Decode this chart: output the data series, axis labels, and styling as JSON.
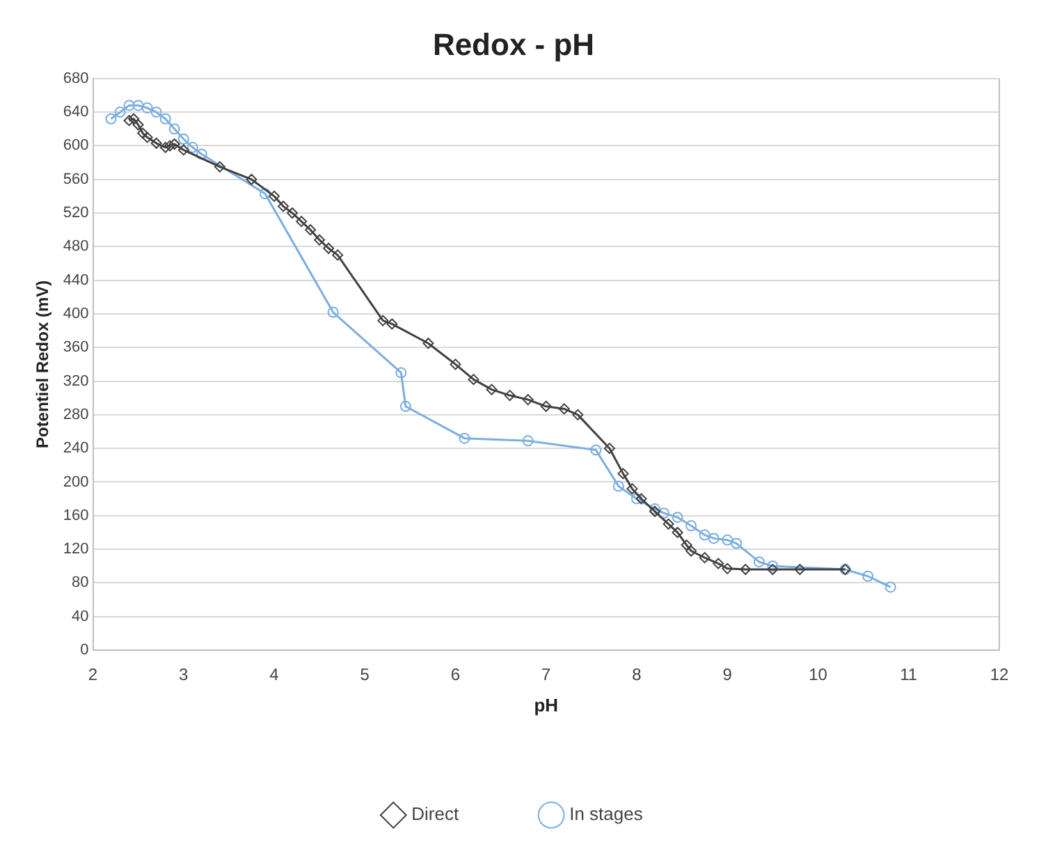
{
  "chart_data": {
    "type": "line",
    "title": "Redox - pH",
    "xlabel": "pH",
    "ylabel": "Potentiel Redox (mV)",
    "xlim": [
      2,
      12
    ],
    "xticks": [
      2,
      3,
      4,
      5,
      6,
      7,
      8,
      9,
      10,
      11,
      12
    ],
    "ylim": [
      0,
      680
    ],
    "yticks": [
      0,
      40,
      80,
      120,
      160,
      200,
      240,
      280,
      320,
      360,
      400,
      440,
      480,
      520,
      560,
      600,
      640,
      680
    ],
    "grid": "y",
    "legend": "bottom",
    "line_style": "solid",
    "series": [
      {
        "name": "Direct",
        "color": "#404040",
        "marker": "diamond",
        "x": [
          2.4,
          2.45,
          2.5,
          2.55,
          2.6,
          2.7,
          2.8,
          2.85,
          2.9,
          3.0,
          3.4,
          3.75,
          4.0,
          4.1,
          4.2,
          4.3,
          4.4,
          4.5,
          4.6,
          4.7,
          5.2,
          5.3,
          5.7,
          6.0,
          6.2,
          6.4,
          6.6,
          6.8,
          7.0,
          7.2,
          7.35,
          7.7,
          7.85,
          7.95,
          8.05,
          8.2,
          8.35,
          8.45,
          8.55,
          8.6,
          8.75,
          8.9,
          9.0,
          9.2,
          9.5,
          9.8,
          10.3
        ],
        "values": [
          630,
          632,
          625,
          615,
          610,
          603,
          598,
          600,
          602,
          595,
          575,
          560,
          540,
          528,
          520,
          510,
          500,
          488,
          478,
          470,
          392,
          388,
          365,
          340,
          322,
          310,
          303,
          298,
          290,
          287,
          280,
          240,
          210,
          192,
          180,
          165,
          150,
          140,
          125,
          118,
          110,
          103,
          97,
          96,
          96,
          96,
          96
        ]
      },
      {
        "name": "In stages",
        "color": "#7aaee0",
        "marker": "circle",
        "x": [
          2.2,
          2.3,
          2.4,
          2.5,
          2.6,
          2.7,
          2.8,
          2.9,
          3.0,
          3.1,
          3.2,
          3.9,
          4.65,
          5.4,
          5.45,
          6.1,
          6.8,
          7.55,
          7.8,
          8.0,
          8.2,
          8.3,
          8.45,
          8.6,
          8.75,
          8.85,
          9.0,
          9.1,
          9.35,
          9.5,
          10.3,
          10.55,
          10.8
        ],
        "values": [
          632,
          640,
          648,
          648,
          645,
          640,
          632,
          620,
          608,
          598,
          590,
          543,
          402,
          330,
          290,
          252,
          249,
          238,
          195,
          180,
          168,
          163,
          158,
          148,
          137,
          133,
          131,
          127,
          105,
          100,
          96,
          88,
          75
        ]
      }
    ]
  }
}
